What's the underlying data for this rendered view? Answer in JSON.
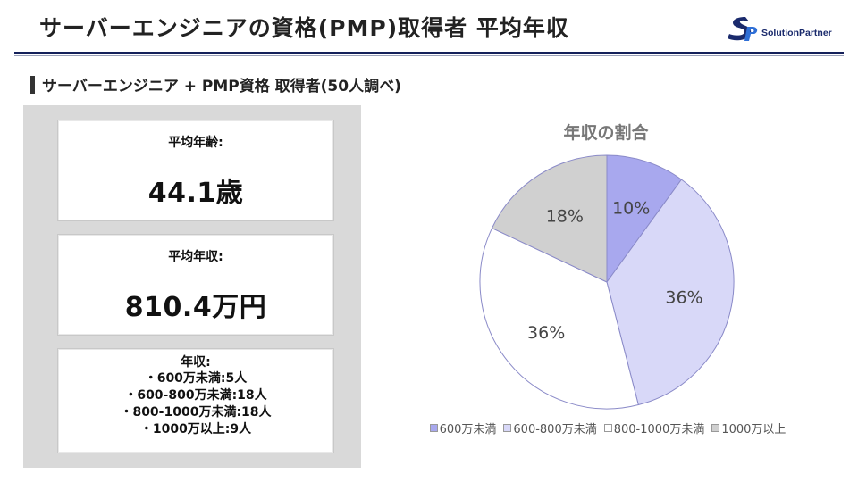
{
  "header": {
    "title": "サーバーエンジニアの資格(PMP)取得者 平均年収",
    "logo_text": "SolutionPartner"
  },
  "subtitle": "サーバーエンジニア + PMP資格 取得者(50人調べ)",
  "stats": {
    "age_label": "平均年齢:",
    "age_value": "44.1歳",
    "income_label": "平均年収:",
    "income_value": "810.4万円",
    "dist_label": "年収:",
    "dist_lines": [
      "・600万未満:5人",
      "・600-800万未満:18人",
      "・800-1000万未満:18人",
      "・1000万以上:9人"
    ]
  },
  "colors": {
    "header_rule": "#14205a",
    "slice_1": "#a8a8ee",
    "slice_2": "#d8d8f8",
    "slice_3": "#ffffff",
    "slice_4": "#d0d0d0"
  },
  "chart_data": {
    "type": "pie",
    "title": "年収の割合",
    "categories": [
      "600万未満",
      "600-800万未満",
      "800-1000万未満",
      "1000万以上"
    ],
    "values": [
      10,
      36,
      36,
      18
    ],
    "value_labels": [
      "10%",
      "36%",
      "36%",
      "18%"
    ],
    "legend": "bottom"
  }
}
